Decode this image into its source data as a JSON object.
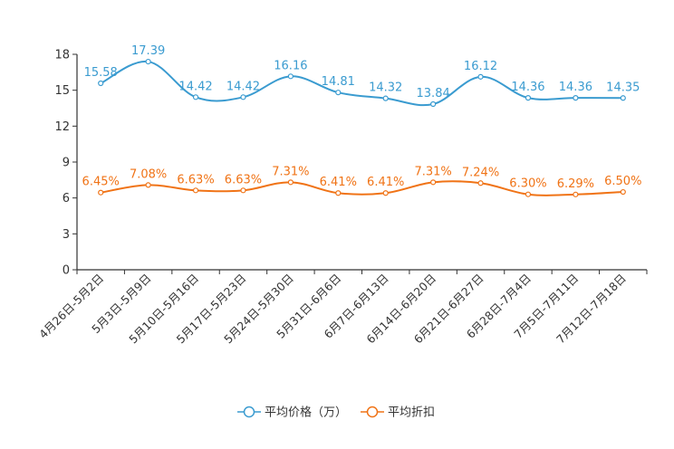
{
  "chart_data": {
    "type": "line",
    "title": "",
    "xlabel": "",
    "ylabel": "",
    "ylim": [
      0,
      18
    ],
    "yticks": [
      0,
      3,
      6,
      9,
      12,
      15,
      18
    ],
    "categories": [
      "4月26日-5月2日",
      "5月3日-5月9日",
      "5月10日-5月16日",
      "5月17日-5月23日",
      "5月24日-5月30日",
      "5月31日-6月6日",
      "6月7日-6月13日",
      "6月14日-6月20日",
      "6月21日-6月27日",
      "6月28日-7月4日",
      "7月5日-7月11日",
      "7月12日-7月18日"
    ],
    "series": [
      {
        "name": "平均价格（万）",
        "color": "#3a9bd0",
        "values": [
          15.58,
          17.39,
          14.42,
          14.42,
          16.16,
          14.81,
          14.32,
          13.84,
          16.12,
          14.36,
          14.36,
          14.35
        ],
        "labels": [
          "15.58",
          "17.39",
          "14.42",
          "14.42",
          "16.16",
          "14.81",
          "14.32",
          "13.84",
          "16.12",
          "14.36",
          "14.36",
          "14.35"
        ]
      },
      {
        "name": "平均折扣",
        "color": "#f07316",
        "values": [
          6.45,
          7.08,
          6.63,
          6.63,
          7.31,
          6.41,
          6.41,
          7.31,
          7.24,
          6.3,
          6.29,
          6.5
        ],
        "labels": [
          "6.45%",
          "7.08%",
          "6.63%",
          "6.63%",
          "7.31%",
          "6.41%",
          "6.41%",
          "7.31%",
          "7.24%",
          "6.30%",
          "6.29%",
          "6.50%"
        ]
      }
    ],
    "legend": "bottom-center",
    "grid": false
  }
}
